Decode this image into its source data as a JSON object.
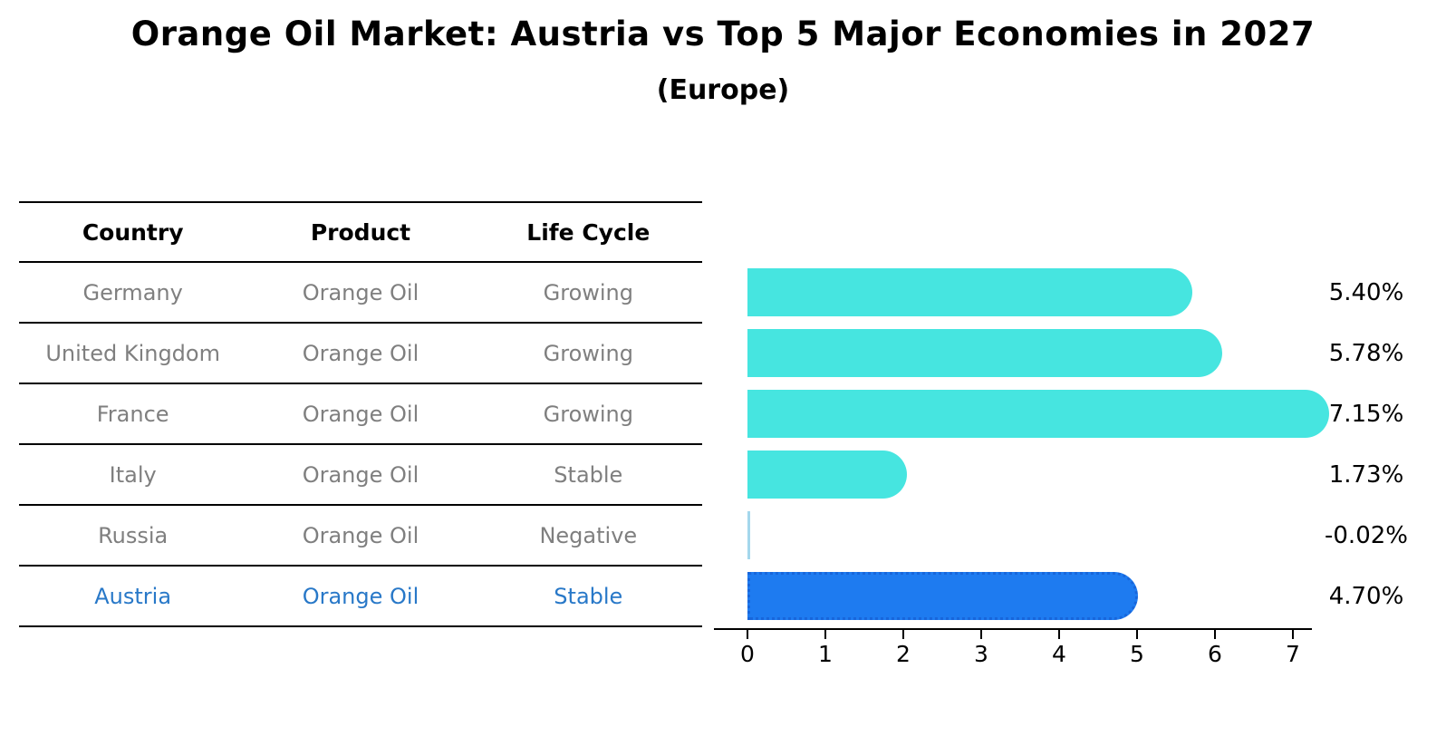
{
  "title": "Orange Oil Market: Austria vs Top 5 Major Economies in 2027",
  "subtitle": "(Europe)",
  "table": {
    "headers": [
      "Country",
      "Product",
      "Life Cycle"
    ],
    "rows": [
      {
        "country": "Germany",
        "product": "Orange Oil",
        "life_cycle": "Growing",
        "highlight": false
      },
      {
        "country": "United Kingdom",
        "product": "Orange Oil",
        "life_cycle": "Growing",
        "highlight": false
      },
      {
        "country": "France",
        "product": "Orange Oil",
        "life_cycle": "Growing",
        "highlight": false
      },
      {
        "country": "Italy",
        "product": "Orange Oil",
        "life_cycle": "Stable",
        "highlight": false
      },
      {
        "country": "Russia",
        "product": "Orange Oil",
        "life_cycle": "Negative",
        "highlight": false
      },
      {
        "country": "Austria",
        "product": "Orange Oil",
        "life_cycle": "Stable",
        "highlight": true
      }
    ]
  },
  "chart_data": {
    "type": "bar",
    "orientation": "horizontal",
    "title": "Orange Oil Market: Austria vs Top 5 Major Economies in 2027",
    "subtitle": "(Europe)",
    "categories": [
      "Germany",
      "United Kingdom",
      "France",
      "Italy",
      "Russia",
      "Austria"
    ],
    "values": [
      5.4,
      5.78,
      7.15,
      1.73,
      -0.02,
      4.7
    ],
    "data_labels": [
      "5.40%",
      "5.78%",
      "7.15%",
      "1.73%",
      "-0.02%",
      "4.70%"
    ],
    "xlim": [
      0,
      7.6
    ],
    "xticks": [
      0,
      1,
      2,
      3,
      4,
      5,
      6,
      7
    ],
    "grid": false,
    "legend": "none",
    "highlight_index": 5,
    "bar_colors": [
      "#46E5E0",
      "#46E5E0",
      "#46E5E0",
      "#46E5E0",
      "#A4D7EC",
      "#1E7BF0"
    ]
  },
  "colors": {
    "bar_default": "#46E5E0",
    "bar_negative": "#A4D7EC",
    "bar_highlight": "#1E7BF0",
    "highlight_border": "#1766DB",
    "table_text": "#7F7F7F",
    "highlight_text": "#2878C8",
    "header_text": "#000000",
    "axis": "#000000"
  }
}
